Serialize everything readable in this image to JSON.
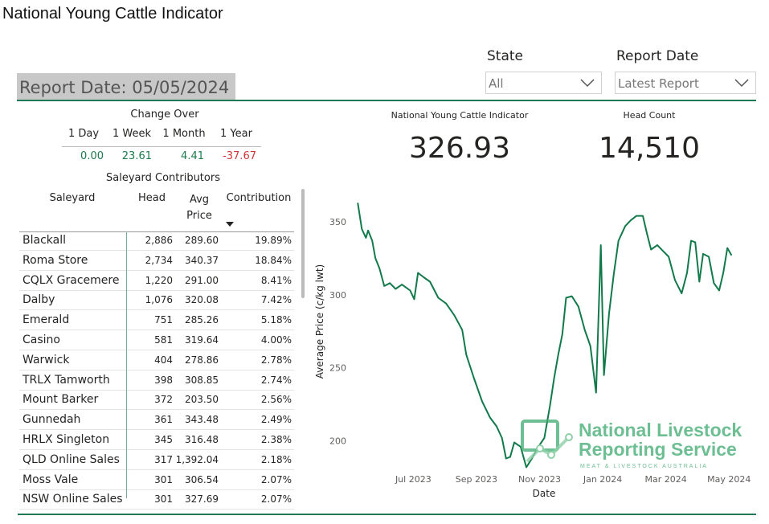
{
  "header": {
    "title": "National Young Cattle Indicator"
  },
  "report_date": "Report Date: 05/05/2024",
  "filters": [
    {
      "label": "State",
      "value": "All"
    },
    {
      "label": "Report Date",
      "value": "Latest Report"
    }
  ],
  "change_over": {
    "title": "Change Over",
    "columns": [
      "1 Day",
      "1 Week",
      "1 Month",
      "1 Year"
    ],
    "values": [
      "0.00",
      "23.61",
      "4.41",
      "-37.67"
    ]
  },
  "saleyards": {
    "title": "Saleyard Contributors",
    "columns": [
      "Saleyard",
      "Head",
      "Avg Price",
      "Contribution"
    ],
    "rows": [
      [
        "Blackall",
        "2,886",
        "289.60",
        "19.89%"
      ],
      [
        "Roma Store",
        "2,734",
        "340.37",
        "18.84%"
      ],
      [
        "CQLX Gracemere",
        "1,220",
        "291.00",
        "8.41%"
      ],
      [
        "Dalby",
        "1,076",
        "320.08",
        "7.42%"
      ],
      [
        "Emerald",
        "751",
        "285.26",
        "5.18%"
      ],
      [
        "Casino",
        "581",
        "319.64",
        "4.00%"
      ],
      [
        "Warwick",
        "404",
        "278.86",
        "2.78%"
      ],
      [
        "TRLX Tamworth",
        "398",
        "308.85",
        "2.74%"
      ],
      [
        "Mount Barker",
        "372",
        "203.50",
        "2.56%"
      ],
      [
        "Gunnedah",
        "361",
        "343.48",
        "2.49%"
      ],
      [
        "HRLX Singleton",
        "345",
        "316.48",
        "2.38%"
      ],
      [
        "QLD Online Sales",
        "317",
        "1,392.04",
        "2.18%"
      ],
      [
        "Moss Vale",
        "301",
        "306.54",
        "2.07%"
      ],
      [
        "NSW Online Sales",
        "301",
        "327.69",
        "2.07%"
      ]
    ]
  },
  "kpis": [
    {
      "label": "National Young Cattle Indicator",
      "value": "326.93"
    },
    {
      "label": "Head Count",
      "value": "14,510"
    }
  ],
  "watermark": {
    "line1": "National Livestock",
    "line2": "Reporting Service",
    "tagline": "MEAT & LIVESTOCK AUSTRALIA"
  },
  "chart_data": {
    "type": "line",
    "xlabel": "Date",
    "ylabel": "Average Price (c/kg lwt)",
    "color": "#127a4a",
    "grid": false,
    "x": [
      5.24,
      5.37,
      5.5,
      5.57,
      5.7,
      5.8,
      5.93,
      6.08,
      6.26,
      6.44,
      6.64,
      6.9,
      7.03,
      7.15,
      7.33,
      7.53,
      7.79,
      8.04,
      8.3,
      8.55,
      8.68,
      8.92,
      9.18,
      9.43,
      9.64,
      9.81,
      9.94,
      10.07,
      10.2,
      10.4,
      10.58,
      10.76,
      10.96,
      11.15,
      11.33,
      11.46,
      11.59,
      11.72,
      11.84,
      12.02,
      12.23,
      12.43,
      12.61,
      12.79,
      12.94,
      13.04,
      13.2,
      13.35,
      13.5,
      13.71,
      13.89,
      14.07,
      14.27,
      14.4,
      14.53,
      14.73,
      14.91,
      15.09,
      15.29,
      15.5,
      15.67,
      15.8,
      15.93,
      16.06,
      16.18,
      16.36,
      16.52,
      16.69,
      16.82,
      16.95,
      17.08
    ],
    "values": [
      363,
      345,
      339,
      344,
      337,
      325,
      318,
      306,
      308,
      304,
      307,
      303,
      297,
      315,
      312,
      309,
      298,
      294,
      286,
      276,
      259,
      243,
      227,
      216,
      210,
      202,
      188,
      189,
      199,
      196,
      182,
      188,
      196,
      202,
      224,
      243,
      259,
      273,
      298,
      299,
      292,
      276,
      265,
      233,
      334,
      245,
      287,
      314,
      337,
      347,
      351,
      354,
      354,
      342,
      331,
      334,
      330,
      326,
      310,
      301,
      315,
      337,
      336,
      309,
      328,
      326,
      308,
      303,
      315,
      332,
      327
    ],
    "xlim": [
      5.2,
      17.3
    ],
    "xticks": [
      {
        "value": 7,
        "label": "Jul 2023"
      },
      {
        "value": 9,
        "label": "Sep 2023"
      },
      {
        "value": 11,
        "label": "Nov 2023"
      },
      {
        "value": 13,
        "label": "Jan 2024"
      },
      {
        "value": 15,
        "label": "Mar 2024"
      },
      {
        "value": 17,
        "label": "May 2024"
      }
    ],
    "ylim": [
      180,
      367
    ],
    "yticks": [
      200,
      250,
      300,
      350
    ]
  }
}
